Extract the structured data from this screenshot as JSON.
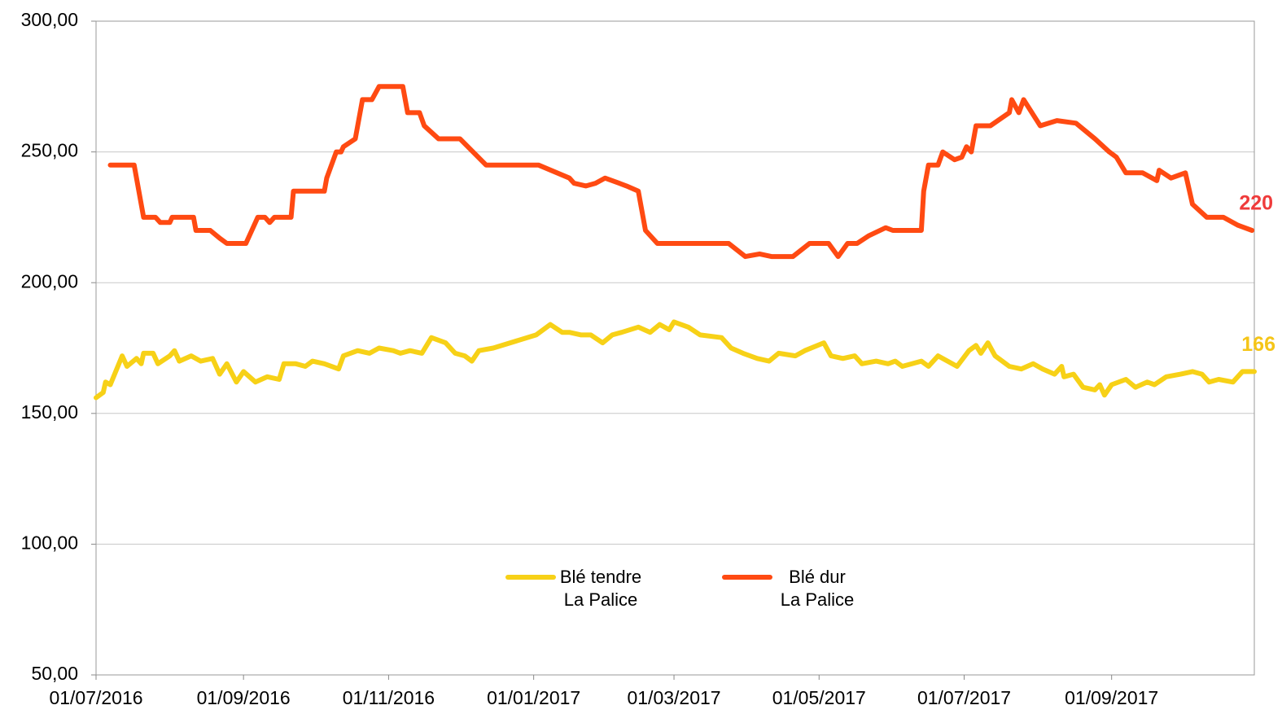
{
  "chart_data": {
    "type": "line",
    "xlim": [
      "2016-07-01",
      "2017-10-31"
    ],
    "xticks": [
      {
        "value": "2016-07-01",
        "label": "01/07/2016"
      },
      {
        "value": "2016-09-01",
        "label": "01/09/2016"
      },
      {
        "value": "2016-11-01",
        "label": "01/11/2016"
      },
      {
        "value": "2017-01-01",
        "label": "01/01/2017"
      },
      {
        "value": "2017-03-01",
        "label": "01/03/2017"
      },
      {
        "value": "2017-05-01",
        "label": "01/05/2017"
      },
      {
        "value": "2017-07-01",
        "label": "01/07/2017"
      },
      {
        "value": "2017-09-01",
        "label": "01/09/2017"
      }
    ],
    "ylim": [
      50,
      300
    ],
    "yticks": [
      {
        "value": 50,
        "label": "50,00"
      },
      {
        "value": 100,
        "label": "100,00"
      },
      {
        "value": 150,
        "label": "150,00"
      },
      {
        "value": 200,
        "label": "200,00"
      },
      {
        "value": 250,
        "label": "250,00"
      },
      {
        "value": 300,
        "label": "300,00"
      }
    ],
    "grid": true,
    "legend_position": "bottom",
    "series": [
      {
        "name": "Blé tendre\nLa Palice",
        "color": "#f7d117",
        "last_label": "166",
        "last_label_color": "#f5c518",
        "x": [
          "2016-07-01",
          "2016-07-04",
          "2016-07-05",
          "2016-07-07",
          "2016-07-12",
          "2016-07-14",
          "2016-07-18",
          "2016-07-20",
          "2016-07-21",
          "2016-07-25",
          "2016-07-27",
          "2016-08-01",
          "2016-08-03",
          "2016-08-05",
          "2016-08-10",
          "2016-08-14",
          "2016-08-19",
          "2016-08-22",
          "2016-08-25",
          "2016-08-29",
          "2016-09-01",
          "2016-09-06",
          "2016-09-11",
          "2016-09-16",
          "2016-09-18",
          "2016-09-23",
          "2016-09-27",
          "2016-09-30",
          "2016-10-05",
          "2016-10-11",
          "2016-10-13",
          "2016-10-19",
          "2016-10-24",
          "2016-10-28",
          "2016-11-03",
          "2016-11-06",
          "2016-11-10",
          "2016-11-15",
          "2016-11-19",
          "2016-11-25",
          "2016-11-29",
          "2016-12-03",
          "2016-12-06",
          "2016-12-09",
          "2016-12-15",
          "2017-01-02",
          "2017-01-08",
          "2017-01-13",
          "2017-01-16",
          "2017-01-21",
          "2017-01-25",
          "2017-01-30",
          "2017-02-03",
          "2017-02-07",
          "2017-02-14",
          "2017-02-19",
          "2017-02-23",
          "2017-02-27",
          "2017-03-01",
          "2017-03-07",
          "2017-03-12",
          "2017-03-21",
          "2017-03-25",
          "2017-03-30",
          "2017-04-05",
          "2017-04-10",
          "2017-04-14",
          "2017-04-21",
          "2017-04-25",
          "2017-05-03",
          "2017-05-06",
          "2017-05-11",
          "2017-05-16",
          "2017-05-19",
          "2017-05-25",
          "2017-05-30",
          "2017-06-02",
          "2017-06-05",
          "2017-06-13",
          "2017-06-16",
          "2017-06-20",
          "2017-06-28",
          "2017-07-03",
          "2017-07-06",
          "2017-07-08",
          "2017-07-11",
          "2017-07-14",
          "2017-07-20",
          "2017-07-25",
          "2017-07-30",
          "2017-08-03",
          "2017-08-08",
          "2017-08-11",
          "2017-08-12",
          "2017-08-16",
          "2017-08-20",
          "2017-08-25",
          "2017-08-27",
          "2017-08-29",
          "2017-09-01",
          "2017-09-07",
          "2017-09-11",
          "2017-09-16",
          "2017-09-19",
          "2017-09-24",
          "2017-09-30",
          "2017-10-05",
          "2017-10-09",
          "2017-10-12",
          "2017-10-16",
          "2017-10-22",
          "2017-10-26",
          "2017-10-31"
        ],
        "values": [
          156,
          158,
          162,
          161,
          172,
          168,
          171,
          169,
          173,
          173,
          169,
          172,
          174,
          170,
          172,
          170,
          171,
          165,
          169,
          162,
          166,
          162,
          164,
          163,
          169,
          169,
          168,
          170,
          169,
          167,
          172,
          174,
          173,
          175,
          174,
          173,
          174,
          173,
          179,
          177,
          173,
          172,
          170,
          174,
          175,
          180,
          184,
          181,
          181,
          180,
          180,
          177,
          180,
          181,
          183,
          181,
          184,
          182,
          185,
          183,
          180,
          179,
          175,
          173,
          171,
          170,
          173,
          172,
          174,
          177,
          172,
          171,
          172,
          169,
          170,
          169,
          170,
          168,
          170,
          168,
          172,
          168,
          174,
          176,
          173,
          177,
          172,
          168,
          167,
          169,
          167,
          165,
          168,
          164,
          165,
          160,
          159,
          161,
          157,
          161,
          163,
          160,
          162,
          161,
          164,
          165,
          166,
          165,
          162,
          163,
          162,
          166,
          166
        ]
      },
      {
        "name": "Blé dur\nLa Palice",
        "color": "#ff4a12",
        "last_label": "220",
        "last_label_color": "#ef3b3b",
        "x": [
          "2016-07-07",
          "2016-07-17",
          "2016-07-21",
          "2016-07-26",
          "2016-07-28",
          "2016-08-01",
          "2016-08-02",
          "2016-08-11",
          "2016-08-12",
          "2016-08-18",
          "2016-08-22",
          "2016-08-25",
          "2016-09-02",
          "2016-09-07",
          "2016-09-10",
          "2016-09-12",
          "2016-09-14",
          "2016-09-21",
          "2016-09-22",
          "2016-10-05",
          "2016-10-06",
          "2016-10-10",
          "2016-10-12",
          "2016-10-13",
          "2016-10-18",
          "2016-10-21",
          "2016-10-25",
          "2016-10-28",
          "2016-11-07",
          "2016-11-09",
          "2016-11-14",
          "2016-11-16",
          "2016-11-22",
          "2016-12-01",
          "2016-12-12",
          "2017-01-03",
          "2017-01-16",
          "2017-01-18",
          "2017-01-23",
          "2017-01-27",
          "2017-01-31",
          "2017-02-06",
          "2017-02-09",
          "2017-02-14",
          "2017-02-17",
          "2017-02-22",
          "2017-03-24",
          "2017-03-31",
          "2017-04-06",
          "2017-04-11",
          "2017-04-20",
          "2017-04-27",
          "2017-05-05",
          "2017-05-09",
          "2017-05-13",
          "2017-05-17",
          "2017-05-22",
          "2017-05-29",
          "2017-06-01",
          "2017-06-13",
          "2017-06-14",
          "2017-06-16",
          "2017-06-20",
          "2017-06-22",
          "2017-06-27",
          "2017-06-30",
          "2017-07-02",
          "2017-07-04",
          "2017-07-06",
          "2017-07-12",
          "2017-07-20",
          "2017-07-21",
          "2017-07-24",
          "2017-07-26",
          "2017-08-02",
          "2017-08-09",
          "2017-08-17",
          "2017-08-25",
          "2017-08-31",
          "2017-09-03",
          "2017-09-07",
          "2017-09-14",
          "2017-09-20",
          "2017-09-21",
          "2017-09-26",
          "2017-09-29",
          "2017-10-02",
          "2017-10-05",
          "2017-10-11",
          "2017-10-18",
          "2017-10-24",
          "2017-10-30"
        ],
        "values": [
          245,
          245,
          225,
          225,
          223,
          223,
          225,
          225,
          220,
          220,
          217,
          215,
          215,
          225,
          225,
          223,
          225,
          225,
          235,
          235,
          240,
          250,
          250,
          252,
          255,
          270,
          270,
          275,
          275,
          265,
          265,
          260,
          255,
          255,
          245,
          245,
          240,
          238,
          237,
          238,
          240,
          238,
          237,
          235,
          220,
          215,
          215,
          210,
          211,
          210,
          210,
          215,
          215,
          210,
          215,
          215,
          218,
          221,
          220,
          220,
          235,
          245,
          245,
          250,
          247,
          248,
          252,
          250,
          260,
          260,
          265,
          270,
          265,
          270,
          260,
          262,
          261,
          255,
          250,
          248,
          242,
          242,
          239,
          243,
          240,
          241,
          242,
          230,
          225,
          225,
          222,
          220
        ]
      }
    ]
  }
}
